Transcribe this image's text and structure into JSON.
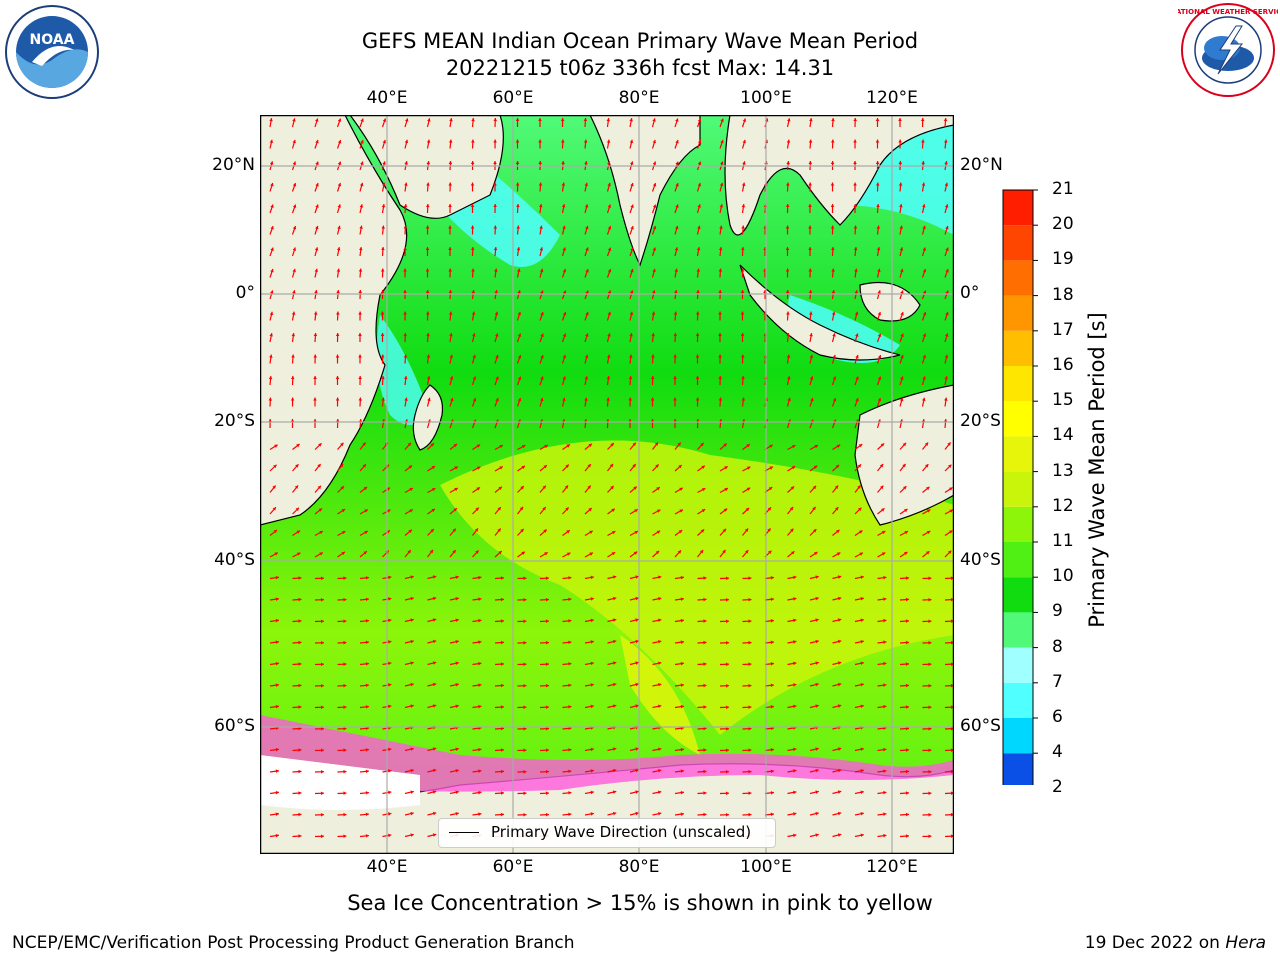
{
  "title": {
    "line1": "GEFS MEAN Indian Ocean Primary Wave Mean Period",
    "line2": "20221215 t06z 336h fcst   Max: 14.31"
  },
  "map": {
    "lon_ticks": [
      "40°E",
      "60°E",
      "80°E",
      "100°E",
      "120°E"
    ],
    "lat_ticks": [
      "20°N",
      "0°",
      "20°S",
      "40°S",
      "60°S"
    ],
    "legend_label": "Primary Wave Direction (unscaled)"
  },
  "colorbar": {
    "label": "Primary Wave Mean Period [s]",
    "ticks": [
      "2",
      "4",
      "6",
      "7",
      "8",
      "9",
      "10",
      "11",
      "12",
      "13",
      "14",
      "15",
      "16",
      "17",
      "18",
      "19",
      "20",
      "21"
    ],
    "colors": [
      "#0a50e6",
      "#00d7ff",
      "#50ffff",
      "#a0ffff",
      "#50fa78",
      "#10dc10",
      "#50f014",
      "#8cf50a",
      "#c8f50a",
      "#e6f50a",
      "#ffff00",
      "#ffe600",
      "#ffbe00",
      "#ff9600",
      "#ff6e00",
      "#ff4600",
      "#ff1e00"
    ],
    "extend_color": "#0000ff"
  },
  "caption": "Sea Ice Concentration > 15% is shown in pink to yellow",
  "footer": {
    "left": "NCEP/EMC/Verification Post Processing Product Generation Branch",
    "date": "19 Dec 2022 on ",
    "machine": "Hera"
  },
  "logos": {
    "noaa_text": "NOAA",
    "nws_text": "NATIONAL WEATHER SERVICE"
  }
}
